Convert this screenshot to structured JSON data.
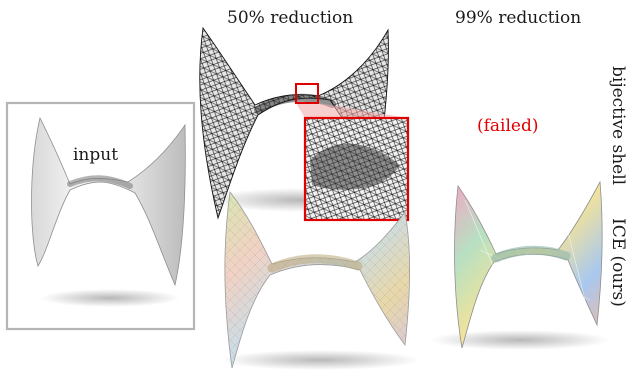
{
  "figure": {
    "column_headers": [
      "50% reduction",
      "99% reduction"
    ],
    "row_labels": [
      "bijective shell",
      "ICE (ours)"
    ],
    "input_label": "input",
    "failed_label": "(failed)",
    "colors": {
      "input_frame": "#b5b5b5",
      "zoom_frame": "#e00000",
      "failed_text": "#e00000",
      "wire": "#111111"
    }
  }
}
